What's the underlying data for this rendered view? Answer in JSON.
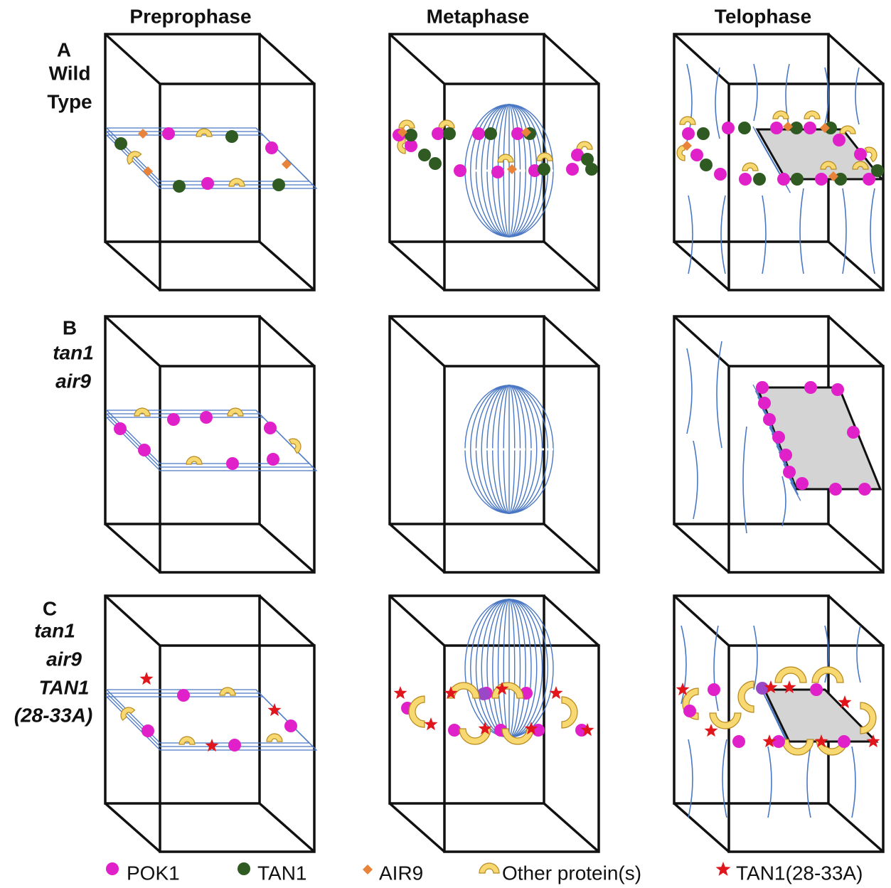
{
  "columns": [
    "Preprophase",
    "Metaphase",
    "Telophase"
  ],
  "rows": [
    {
      "letter": "A",
      "label": [
        "Wild",
        "Type"
      ]
    },
    {
      "letter": "B",
      "label": [
        "tan1",
        "air9"
      ]
    },
    {
      "letter": "C",
      "label": [
        "tan1",
        "air9",
        "TAN1",
        "(28-33A)"
      ]
    }
  ],
  "legend": [
    "POK1",
    "TAN1",
    "AIR9",
    "Other protein(s)",
    "TAN1(28-33A)"
  ]
}
